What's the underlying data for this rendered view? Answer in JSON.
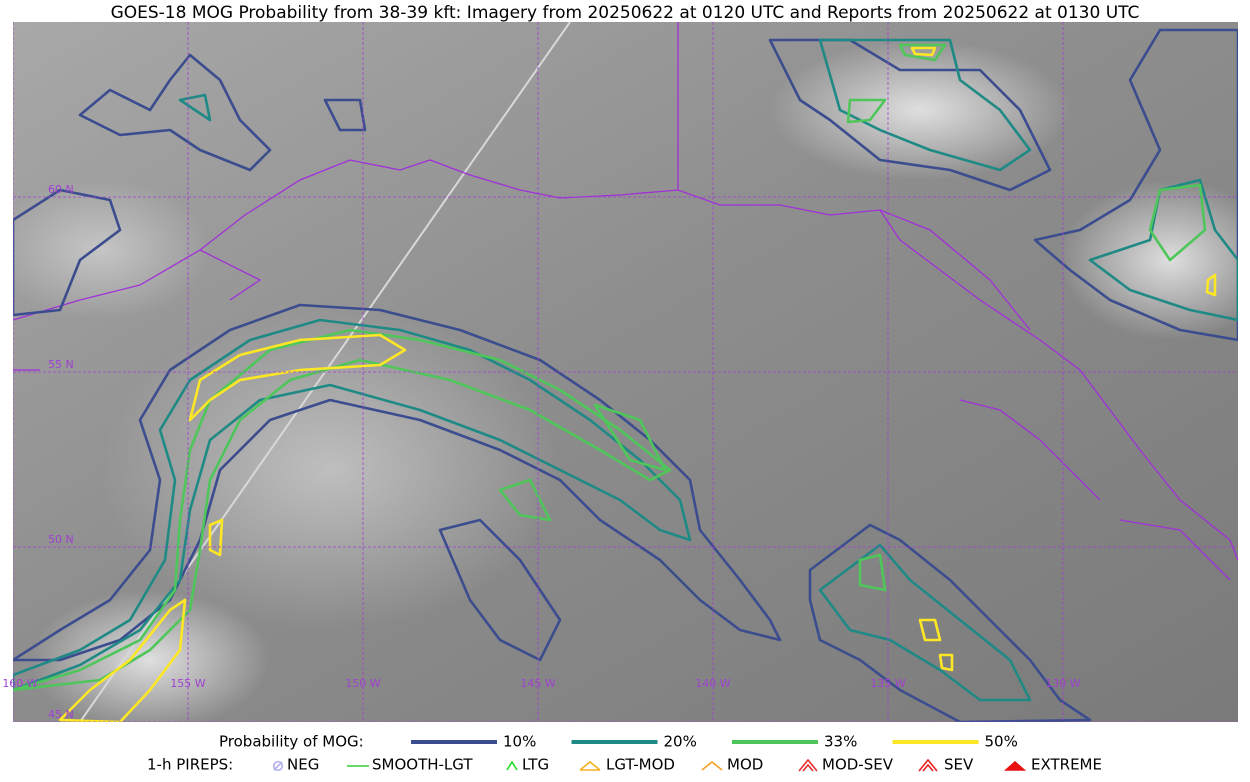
{
  "header": {
    "title": "GOES-18 MOG Probability from 38-39 kft: Imagery from 20250622 at 0120 UTC and Reports from 20250622 at 0130 UTC"
  },
  "map": {
    "lat_labels": [
      "60 N",
      "55 N",
      "50 N",
      "45 N"
    ],
    "lon_labels": [
      "160 W",
      "155 W",
      "150 W",
      "145 W",
      "140 W",
      "135 W",
      "130 W"
    ]
  },
  "legend": {
    "probability": {
      "title": "Probability of MOG:",
      "items": [
        {
          "label": "10%",
          "color": "#3b4d8e"
        },
        {
          "label": "20%",
          "color": "#1f8a85"
        },
        {
          "label": "33%",
          "color": "#4fc65a"
        },
        {
          "label": "50%",
          "color": "#fde725"
        }
      ]
    },
    "pireps": {
      "title": "1-h PIREPS:",
      "items": [
        {
          "label": "NEG",
          "color": "#b0b0f0"
        },
        {
          "label": "SMOOTH-LGT",
          "color": "#33cc33"
        },
        {
          "label": "LTG",
          "color": "#22dd22"
        },
        {
          "label": "LGT-MOD",
          "color": "#f5b020"
        },
        {
          "label": "MOD",
          "color": "#f5a020"
        },
        {
          "label": "MOD-SEV",
          "color": "#e83030"
        },
        {
          "label": "SEV",
          "color": "#e82020"
        },
        {
          "label": "EXTREME",
          "color": "#e81010"
        }
      ]
    }
  }
}
